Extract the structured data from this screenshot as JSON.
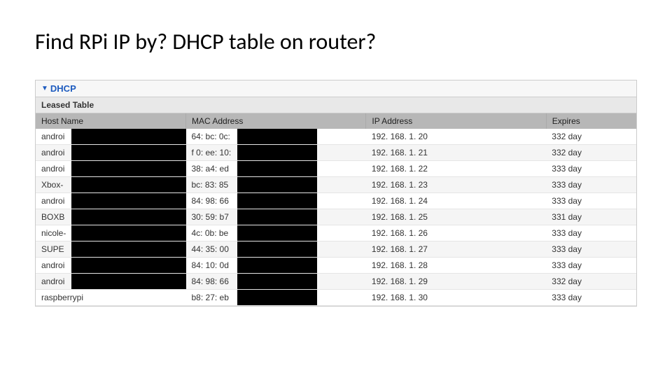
{
  "title": "Find RPi IP by? DHCP table on router?",
  "section": {
    "label": "DHCP"
  },
  "subsection": {
    "label": "Leased Table"
  },
  "table": {
    "headers": {
      "host": "Host Name",
      "mac": "MAC Address",
      "ip": "IP Address",
      "expires": "Expires"
    },
    "rows": [
      {
        "host": "androi",
        "mac": "64: bc: 0c:",
        "ip": "192. 168. 1. 20",
        "expires": "332 day",
        "redact_host": true,
        "redact_mac": true
      },
      {
        "host": "androi",
        "mac": "f 0: ee: 10:",
        "ip": "192. 168. 1. 21",
        "expires": "332 day",
        "redact_host": true,
        "redact_mac": true
      },
      {
        "host": "androi",
        "mac": "38: a4: ed",
        "ip": "192. 168. 1. 22",
        "expires": "333 day",
        "redact_host": true,
        "redact_mac": true
      },
      {
        "host": "Xbox-",
        "mac": "bc: 83: 85",
        "ip": "192. 168. 1. 23",
        "expires": "333 day",
        "redact_host": true,
        "redact_mac": true
      },
      {
        "host": "androi",
        "mac": "84: 98: 66",
        "ip": "192. 168. 1. 24",
        "expires": "333 day",
        "redact_host": true,
        "redact_mac": true
      },
      {
        "host": "BOXB",
        "mac": "30: 59: b7",
        "ip": "192. 168. 1. 25",
        "expires": "331 day",
        "redact_host": true,
        "redact_mac": true
      },
      {
        "host": "nicole-",
        "mac": "4c: 0b: be",
        "ip": "192. 168. 1. 26",
        "expires": "333 day",
        "redact_host": true,
        "redact_mac": true
      },
      {
        "host": "SUPE",
        "mac": "44: 35: 00",
        "ip": "192. 168. 1. 27",
        "expires": "333 day",
        "redact_host": true,
        "redact_mac": true
      },
      {
        "host": "androi",
        "mac": "84: 10: 0d",
        "ip": "192. 168. 1. 28",
        "expires": "333 day",
        "redact_host": true,
        "redact_mac": true
      },
      {
        "host": "androi",
        "mac": "84: 98: 66",
        "ip": "192. 168. 1. 29",
        "expires": "332 day",
        "redact_host": true,
        "redact_mac": true
      },
      {
        "host": "raspberrypi",
        "mac": "b8: 27: eb",
        "ip": "192. 168. 1. 30",
        "expires": "333 day",
        "redact_host": false,
        "redact_mac": true
      }
    ]
  },
  "colors": {
    "link": "#1d5bbf",
    "header_bg": "#b7b7b7",
    "row_alt": "#f5f5f5"
  }
}
